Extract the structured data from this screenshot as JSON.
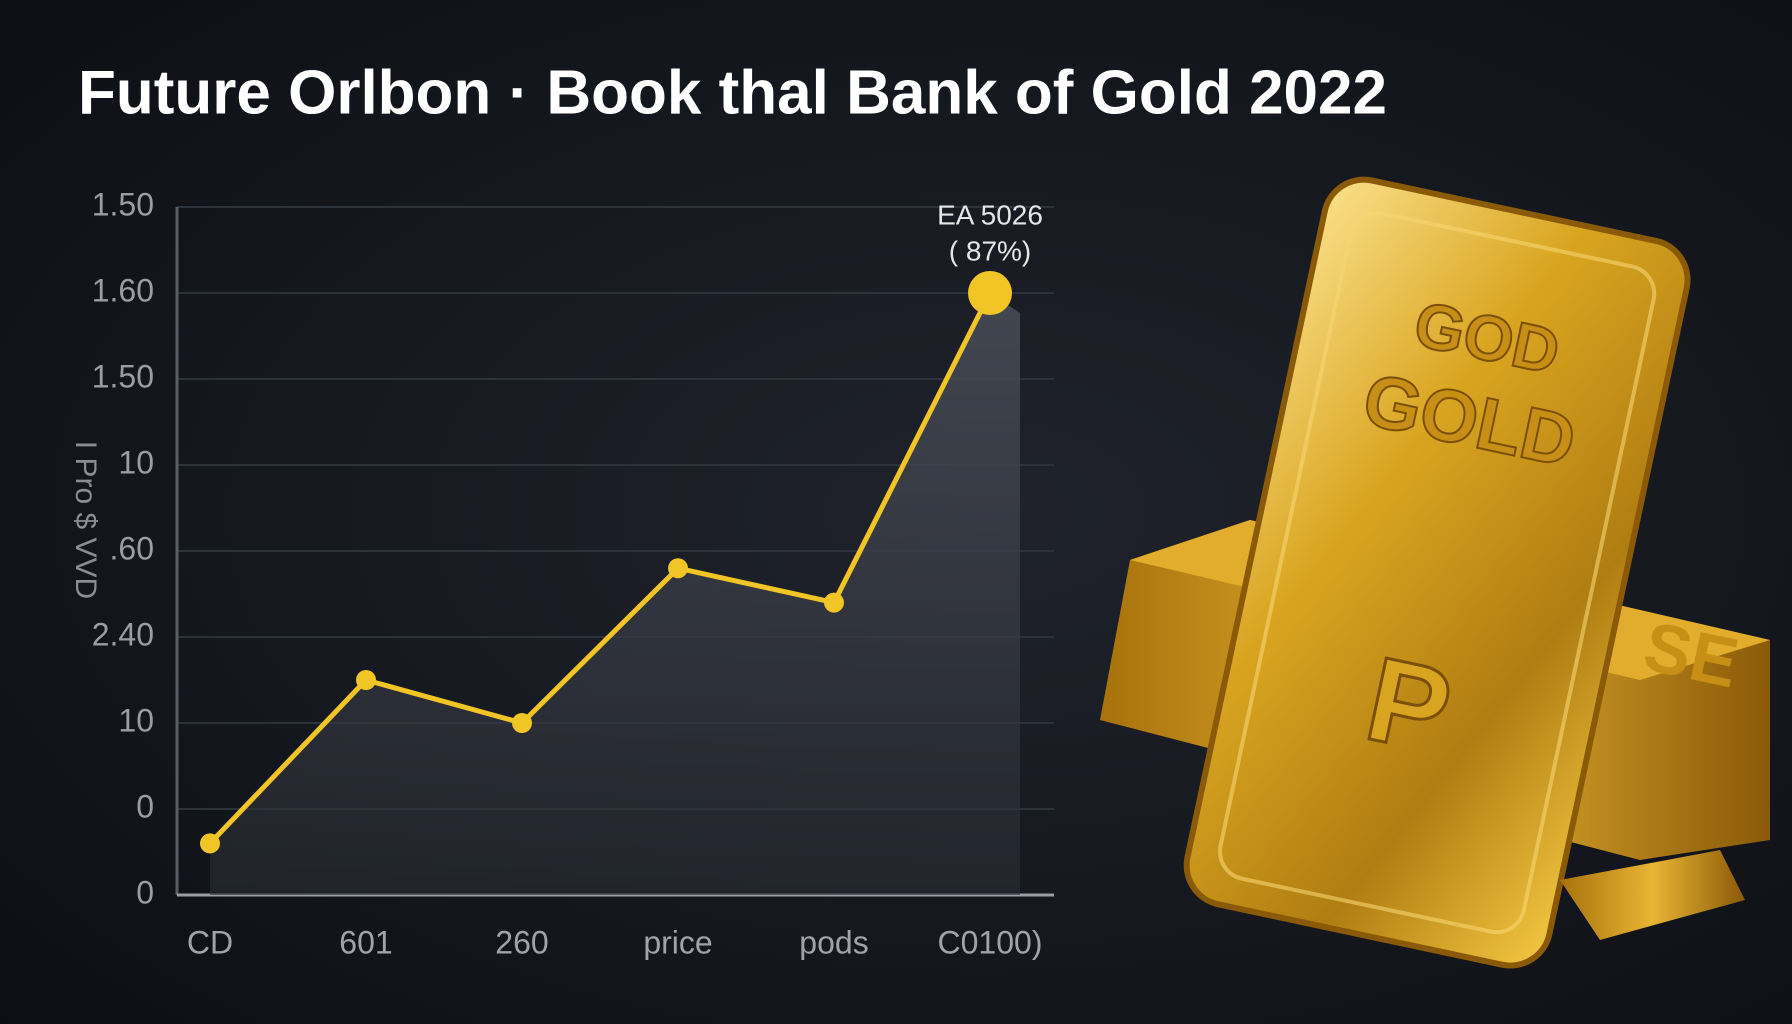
{
  "chart_data": {
    "type": "line",
    "title": "Future Orlbon · Book thal Bank of Gold 2022",
    "y_label": "I Pro $ VVD",
    "categories": [
      "CD",
      "601",
      "260",
      "price",
      "pods",
      "C0100)"
    ],
    "series": [
      {
        "name": "price",
        "color": "#f2c526",
        "values": [
          0.6,
          2.5,
          2.0,
          3.8,
          3.4,
          7.0
        ]
      }
    ],
    "annotation": {
      "text": "EA 5026",
      "subtext": "( 87%)"
    },
    "ylim": [
      0,
      8
    ],
    "yticks": [
      {
        "value": 0,
        "label": "0"
      },
      {
        "value": 1,
        "label": "0"
      },
      {
        "value": 2,
        "label": "10"
      },
      {
        "value": 3,
        "label": "2.40"
      },
      {
        "value": 4,
        "label": ".60"
      },
      {
        "value": 5,
        "label": "10"
      },
      {
        "value": 6,
        "label": "1.50"
      },
      {
        "value": 7,
        "label": "1.60"
      },
      {
        "value": 8,
        "label": "1.50"
      }
    ],
    "grid": true
  },
  "illustration": {
    "texts": [
      "GOD",
      "GOLD",
      "P"
    ]
  }
}
